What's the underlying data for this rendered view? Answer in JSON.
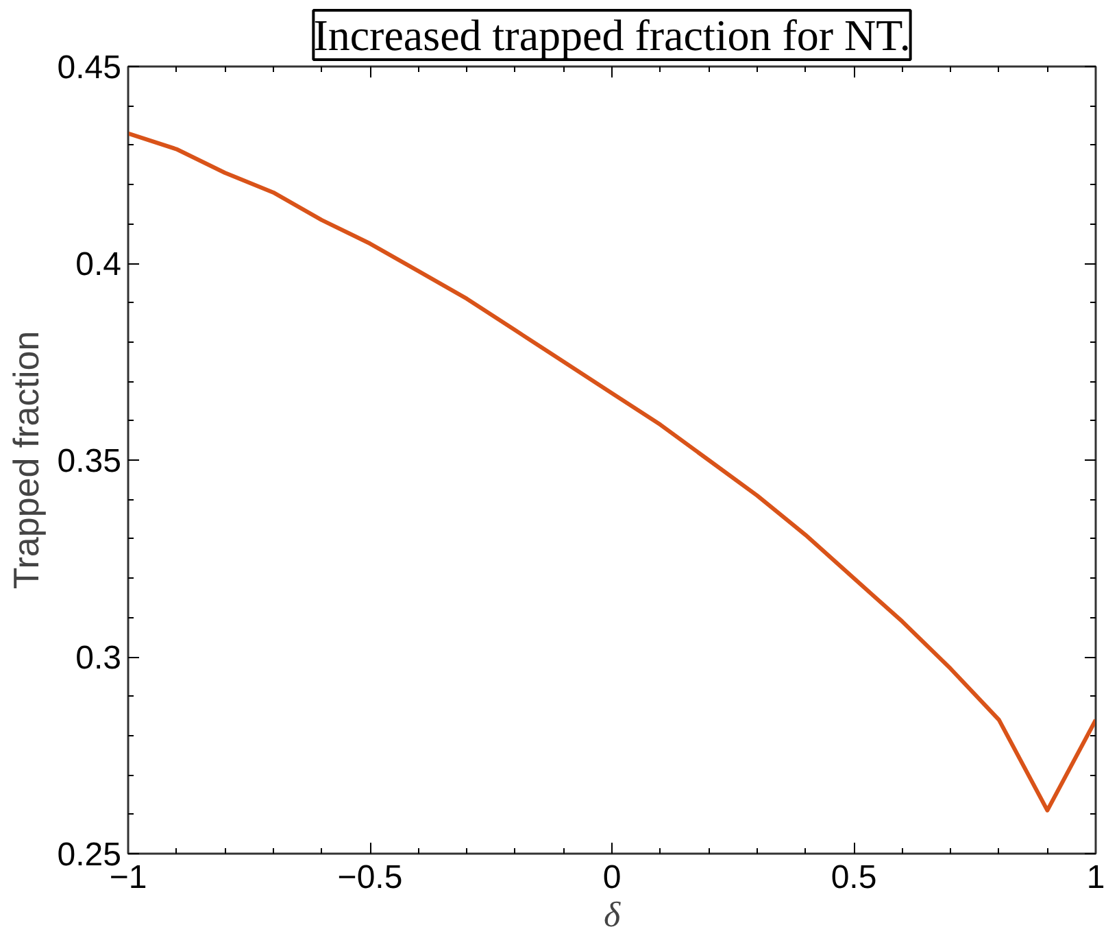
{
  "chart_data": {
    "type": "line",
    "title": "Increased trapped fraction for NT.",
    "xlabel": "δ",
    "ylabel": "Trapped fraction",
    "x": [
      -1,
      -0.9,
      -0.8,
      -0.7,
      -0.6,
      -0.5,
      -0.4,
      -0.3,
      -0.2,
      -0.1,
      0,
      0.1,
      0.2,
      0.3,
      0.4,
      0.5,
      0.6,
      0.7,
      0.8,
      0.9,
      1
    ],
    "series": [
      {
        "color": "#d95319",
        "values": [
          0.433,
          0.429,
          0.423,
          0.418,
          0.411,
          0.405,
          0.398,
          0.391,
          0.383,
          0.375,
          0.367,
          0.359,
          0.35,
          0.341,
          0.331,
          0.32,
          0.309,
          0.297,
          0.284,
          0.261,
          0.284
        ]
      }
    ],
    "xlim": [
      -1,
      1
    ],
    "ylim": [
      0.25,
      0.45
    ],
    "xticks": [
      -1,
      -0.5,
      0,
      0.5,
      1
    ],
    "yticks": [
      0.25,
      0.3,
      0.35,
      0.4,
      0.45
    ],
    "grid": false,
    "marker": "none",
    "line_style": "solid"
  }
}
